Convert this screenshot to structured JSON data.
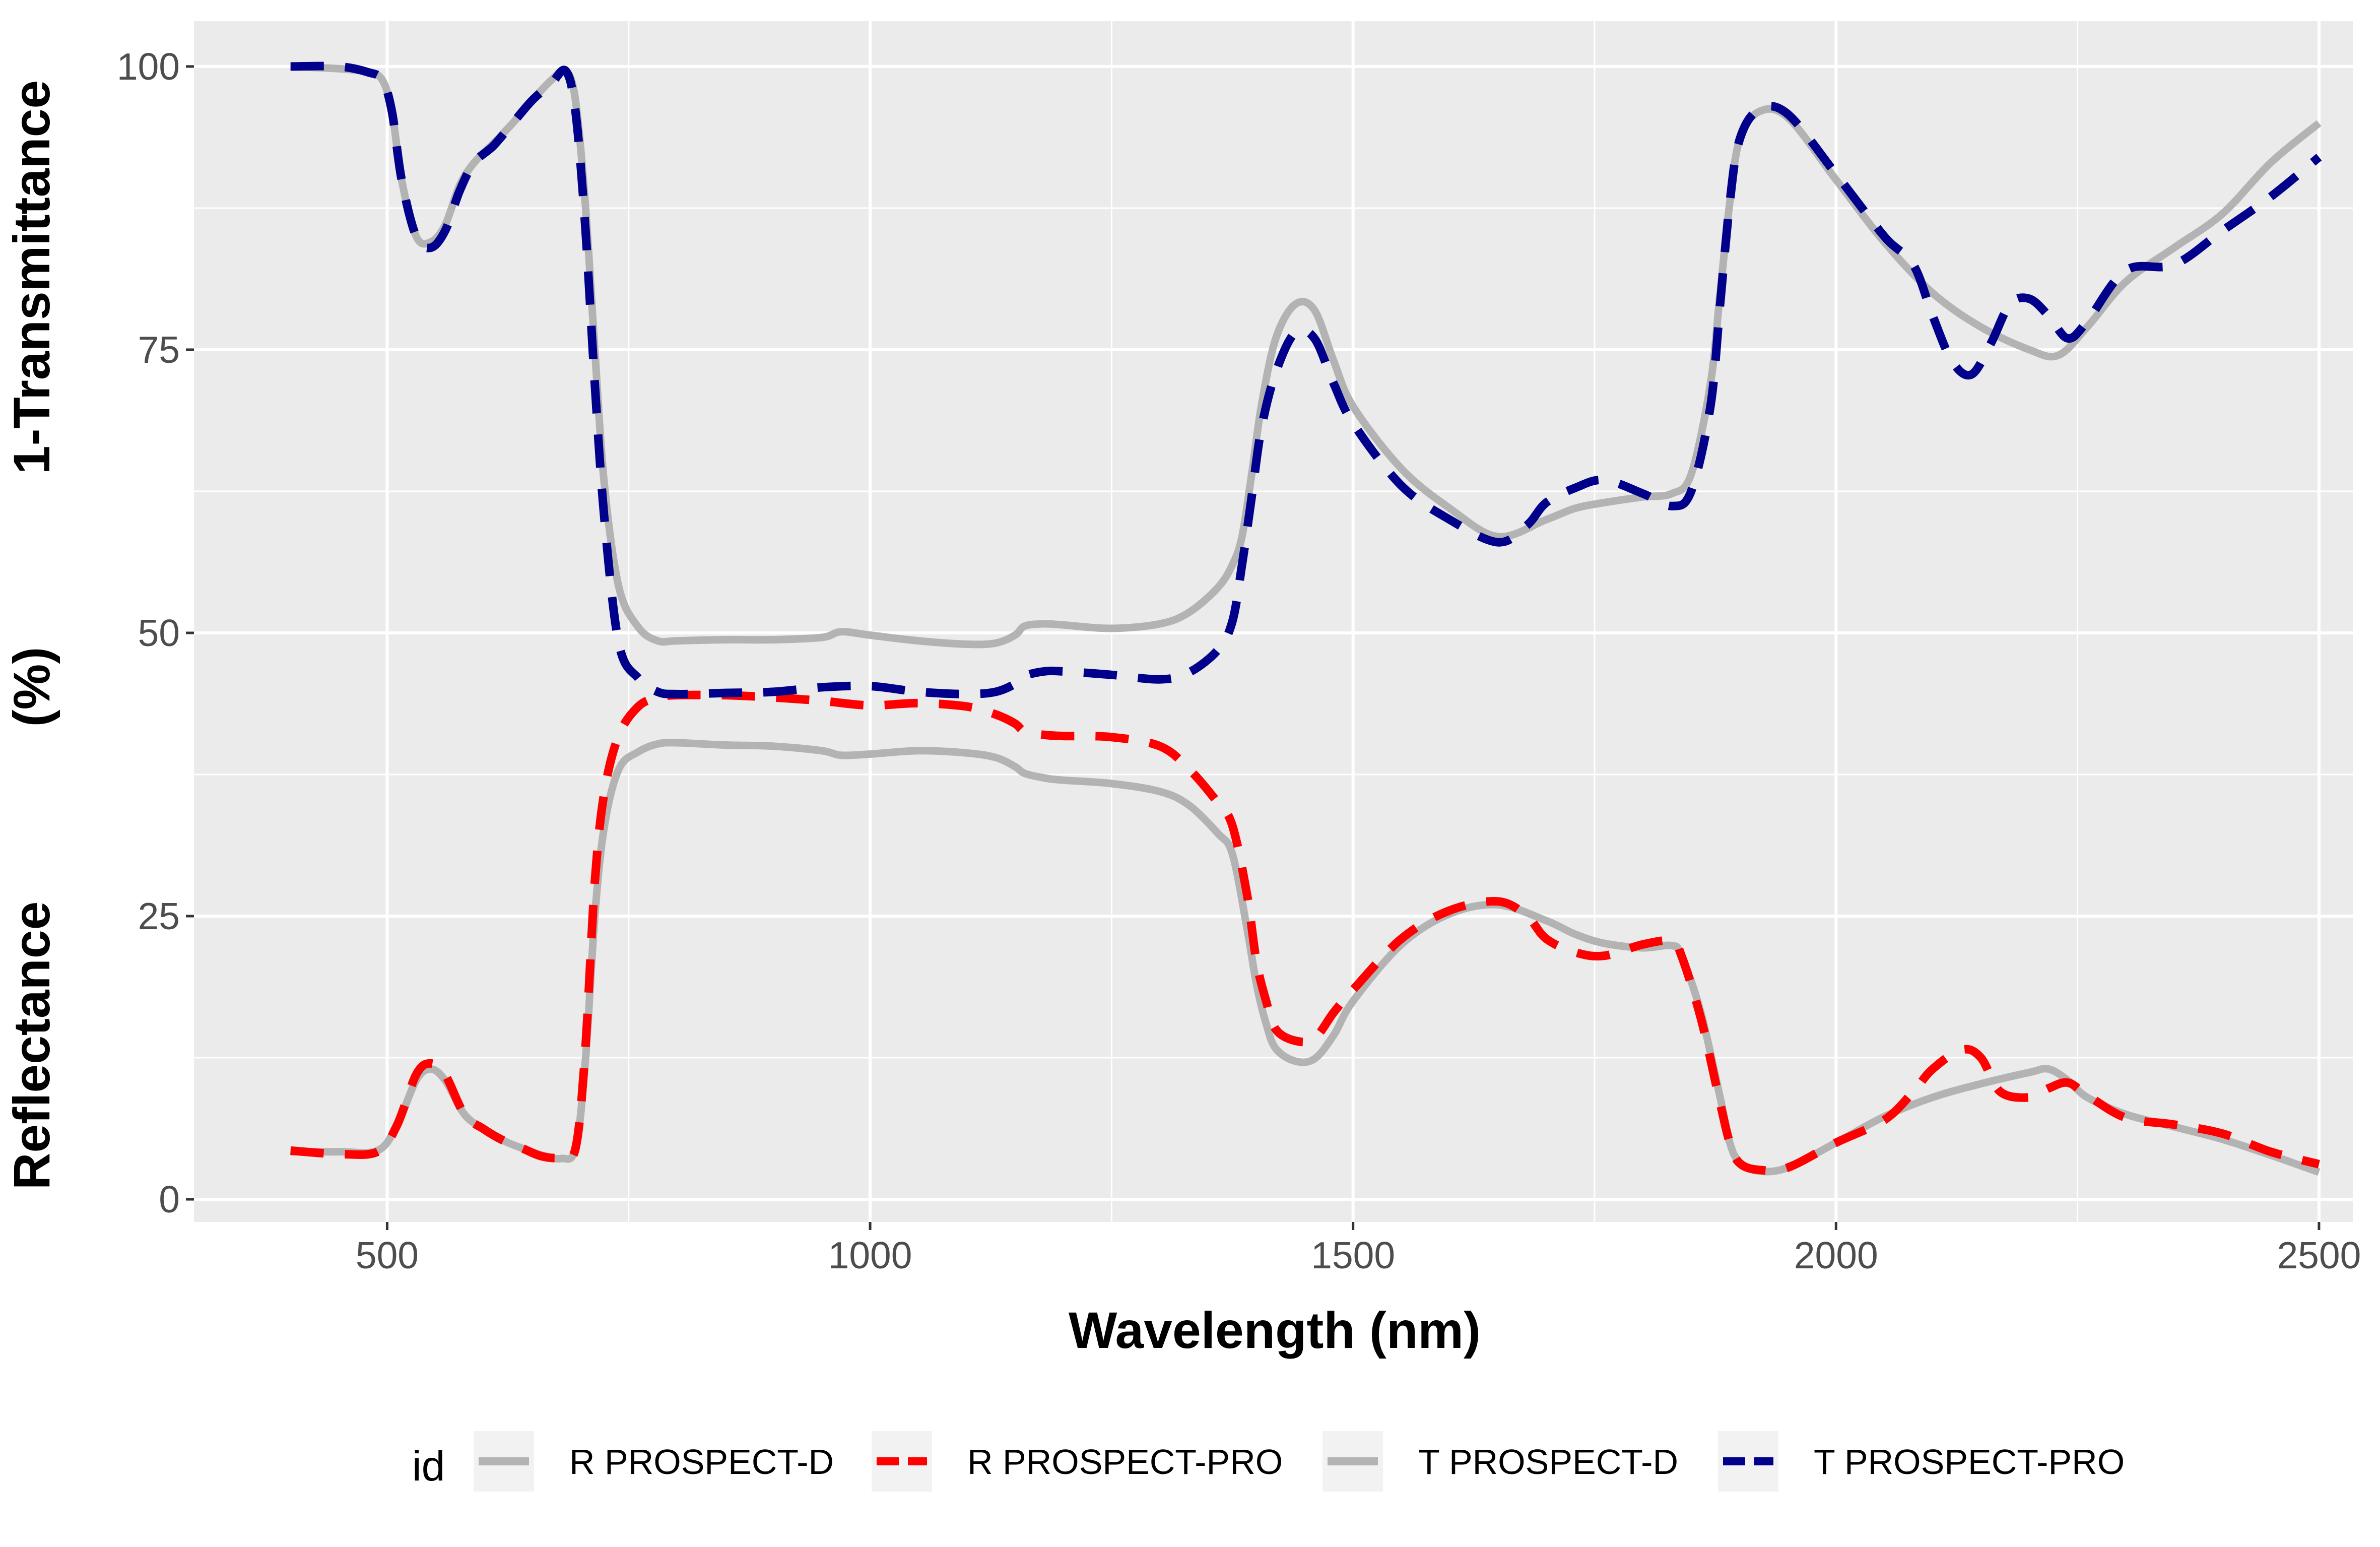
{
  "chart_data": {
    "type": "line",
    "xlabel": "Wavelength (nm)",
    "ylabel_lines": [
      "Reflectance",
      "(%)",
      "1-Transmittance"
    ],
    "xlim": [
      300,
      2535
    ],
    "ylim": [
      -2,
      104
    ],
    "x_ticks": [
      500,
      1000,
      1500,
      2000,
      2500
    ],
    "x_tick_labels": [
      "500",
      "1000",
      "1500",
      "2000",
      "2500"
    ],
    "y_ticks": [
      0,
      25,
      50,
      75,
      100
    ],
    "y_tick_labels": [
      "0",
      "25",
      "50",
      "75",
      "100"
    ],
    "grid": true,
    "legend": {
      "title": "id",
      "position": "bottom",
      "entries": [
        "R PROSPECT-D",
        "R PROSPECT-PRO",
        "T PROSPECT-D",
        "T PROSPECT-PRO"
      ]
    },
    "series": [
      {
        "name": "R PROSPECT-D",
        "color": "#b3b3b3",
        "dash": "solid",
        "x": [
          400,
          450,
          490,
          510,
          530,
          545,
          560,
          580,
          600,
          620,
          640,
          660,
          680,
          695,
          705,
          715,
          725,
          740,
          760,
          780,
          800,
          850,
          900,
          950,
          970,
          1000,
          1050,
          1100,
          1130,
          1150,
          1160,
          1180,
          1200,
          1250,
          1300,
          1330,
          1360,
          1375,
          1390,
          1400,
          1410,
          1420,
          1440,
          1460,
          1480,
          1500,
          1550,
          1600,
          1650,
          1700,
          1730,
          1760,
          1800,
          1830,
          1840,
          1860,
          1880,
          1890,
          1900,
          1920,
          1950,
          2000,
          2050,
          2100,
          2150,
          2200,
          2220,
          2240,
          2260,
          2300,
          2350,
          2400,
          2450,
          2500
        ],
        "y": [
          4.2,
          4.2,
          4.3,
          6.5,
          10.5,
          11.5,
          10.5,
          7.5,
          6.2,
          5.2,
          4.5,
          3.9,
          3.6,
          4.5,
          12,
          25,
          33,
          38,
          39.5,
          40.2,
          40.3,
          40.1,
          40.0,
          39.6,
          39.2,
          39.3,
          39.6,
          39.4,
          39.0,
          38.2,
          37.6,
          37.2,
          37.0,
          36.7,
          36.0,
          34.8,
          32.3,
          30.5,
          24.0,
          19.0,
          15.5,
          13.3,
          12.2,
          12.4,
          14.5,
          17.5,
          22.5,
          25.2,
          26.0,
          24.6,
          23.4,
          22.6,
          22.2,
          22.4,
          21.5,
          16.5,
          9.0,
          5.0,
          3.3,
          2.5,
          2.8,
          5.0,
          7.3,
          9.0,
          10.2,
          11.2,
          11.5,
          10.5,
          9.0,
          7.5,
          6.4,
          5.3,
          3.9,
          2.4
        ]
      },
      {
        "name": "R PROSPECT-PRO",
        "color": "#ff0000",
        "dash": "dashed",
        "x": [
          400,
          450,
          490,
          510,
          530,
          545,
          560,
          580,
          600,
          620,
          640,
          660,
          680,
          695,
          705,
          715,
          725,
          740,
          760,
          780,
          800,
          850,
          900,
          950,
          1000,
          1050,
          1100,
          1130,
          1150,
          1160,
          1180,
          1200,
          1250,
          1300,
          1330,
          1360,
          1375,
          1390,
          1400,
          1410,
          1420,
          1440,
          1460,
          1480,
          1500,
          1550,
          1600,
          1650,
          1680,
          1700,
          1730,
          1760,
          1800,
          1830,
          1840,
          1860,
          1880,
          1890,
          1900,
          1920,
          1950,
          2000,
          2050,
          2080,
          2100,
          2130,
          2150,
          2170,
          2200,
          2220,
          2240,
          2260,
          2300,
          2350,
          2400,
          2450,
          2500
        ],
        "y": [
          4.3,
          4.0,
          4.2,
          6.5,
          11.0,
          12.0,
          11.0,
          7.5,
          6.2,
          5.2,
          4.5,
          3.8,
          3.7,
          4.5,
          13,
          28,
          36,
          41,
          43.5,
          44.3,
          44.5,
          44.5,
          44.3,
          44.0,
          43.6,
          43.8,
          43.5,
          42.8,
          42.0,
          41.3,
          41.0,
          40.9,
          40.8,
          40.0,
          38.0,
          35.0,
          33.0,
          27.0,
          21.0,
          17.5,
          15.0,
          14.0,
          14.2,
          16.5,
          18.5,
          23.0,
          25.5,
          26.3,
          25.0,
          23.0,
          21.8,
          21.5,
          22.5,
          22.8,
          21.5,
          16.0,
          8.5,
          5.0,
          3.2,
          2.6,
          2.8,
          5.0,
          7.0,
          9.5,
          11.5,
          13.2,
          12.5,
          9.5,
          9.0,
          9.8,
          10.3,
          9.2,
          7.2,
          6.6,
          5.8,
          4.2,
          3.1
        ]
      },
      {
        "name": "T PROSPECT-D",
        "color": "#b3b3b3",
        "dash": "solid",
        "x": [
          400,
          450,
          480,
          495,
          505,
          515,
          530,
          545,
          560,
          575,
          590,
          610,
          630,
          650,
          670,
          685,
          695,
          705,
          715,
          725,
          740,
          760,
          780,
          800,
          850,
          900,
          950,
          970,
          1000,
          1050,
          1100,
          1130,
          1150,
          1160,
          1180,
          1200,
          1250,
          1300,
          1330,
          1360,
          1375,
          1385,
          1395,
          1405,
          1420,
          1440,
          1460,
          1480,
          1500,
          1550,
          1600,
          1650,
          1700,
          1730,
          1760,
          1800,
          1830,
          1850,
          1870,
          1880,
          1890,
          1900,
          1920,
          1950,
          2000,
          2050,
          2100,
          2150,
          2200,
          2230,
          2260,
          2300,
          2350,
          2400,
          2450,
          2500
        ],
        "y": [
          100,
          99.8,
          99.5,
          98.8,
          96.0,
          90.0,
          85.0,
          84.5,
          86.0,
          89.5,
          91.5,
          93.2,
          95.0,
          97.0,
          98.8,
          99.6,
          97.0,
          88.0,
          75.0,
          63.0,
          54.0,
          50.5,
          49.3,
          49.3,
          49.4,
          49.4,
          49.6,
          50.1,
          49.8,
          49.3,
          49.0,
          49.1,
          49.8,
          50.6,
          50.8,
          50.7,
          50.4,
          50.8,
          51.8,
          54.0,
          56.0,
          58.5,
          64.0,
          70.0,
          76.0,
          79.0,
          78.5,
          74.0,
          70.0,
          64.5,
          61.0,
          58.5,
          60.0,
          61.0,
          61.5,
          62.0,
          62.3,
          64.0,
          72.0,
          80.0,
          88.0,
          93.5,
          96.0,
          95.5,
          90.0,
          84.5,
          80.0,
          77.0,
          75.0,
          74.5,
          77.0,
          81.0,
          84.0,
          87.0,
          91.5,
          95.0
        ]
      },
      {
        "name": "T PROSPECT-PRO",
        "color": "#00008b",
        "dash": "dashed",
        "x": [
          400,
          450,
          480,
          495,
          505,
          515,
          530,
          545,
          560,
          575,
          590,
          610,
          630,
          650,
          670,
          685,
          695,
          705,
          715,
          725,
          740,
          760,
          780,
          800,
          850,
          900,
          950,
          1000,
          1050,
          1100,
          1130,
          1150,
          1160,
          1180,
          1200,
          1250,
          1300,
          1330,
          1360,
          1375,
          1385,
          1395,
          1405,
          1420,
          1440,
          1460,
          1480,
          1500,
          1550,
          1600,
          1650,
          1680,
          1700,
          1730,
          1760,
          1800,
          1830,
          1850,
          1870,
          1880,
          1890,
          1900,
          1920,
          1950,
          2000,
          2050,
          2080,
          2100,
          2120,
          2140,
          2160,
          2180,
          2200,
          2220,
          2240,
          2260,
          2300,
          2350,
          2400,
          2450,
          2500
        ],
        "y": [
          100,
          100,
          99.5,
          98.8,
          96.0,
          90.0,
          85.0,
          84.0,
          85.5,
          89.0,
          91.5,
          93.0,
          95.0,
          97.0,
          98.5,
          99.6,
          96.0,
          86.0,
          72.0,
          60.0,
          49.0,
          46.0,
          44.8,
          44.6,
          44.7,
          44.8,
          45.2,
          45.3,
          44.8,
          44.6,
          44.8,
          45.5,
          46.2,
          46.6,
          46.6,
          46.3,
          45.9,
          46.5,
          48.5,
          51.0,
          56.0,
          62.0,
          68.0,
          73.0,
          76.5,
          76.0,
          72.0,
          68.5,
          63.0,
          60.0,
          58.0,
          59.5,
          61.5,
          62.8,
          63.5,
          62.3,
          61.2,
          62.5,
          70.0,
          79.0,
          88.0,
          93.5,
          96.2,
          95.8,
          90.5,
          85.0,
          82.5,
          78.0,
          74.0,
          72.8,
          75.5,
          79.0,
          79.5,
          78.0,
          76.0,
          77.5,
          82.0,
          82.5,
          85.5,
          88.5,
          92.0
        ]
      }
    ]
  }
}
